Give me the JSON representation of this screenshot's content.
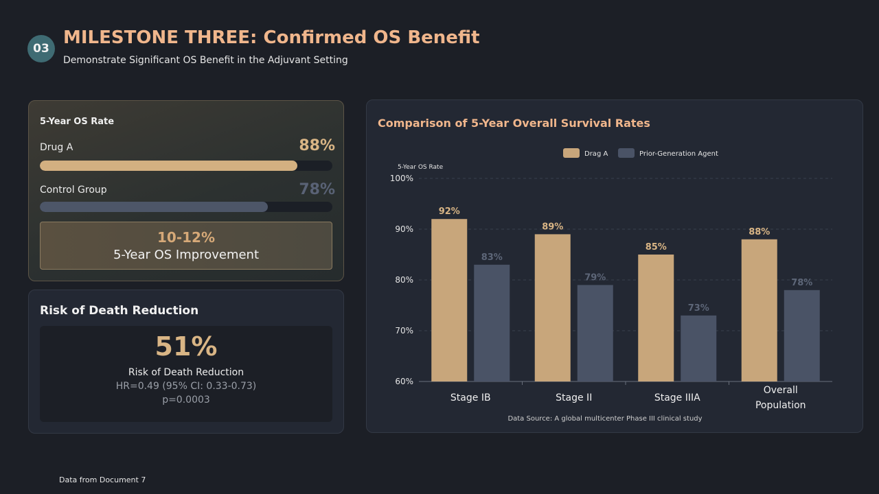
{
  "header": {
    "badge": "03",
    "title": "MILESTONE THREE: Confirmed OS Benefit",
    "subtitle": "Demonstrate Significant OS Benefit in the Adjuvant Setting"
  },
  "os_card": {
    "title": "5-Year OS Rate",
    "bars": [
      {
        "label": "Drug A",
        "value_text": "88%",
        "fraction": 0.88,
        "color": "#d3b081",
        "value_color": "#d9b585"
      },
      {
        "label": "Control Group",
        "value_text": "78%",
        "fraction": 0.78,
        "color": "#4d5668",
        "value_color": "#596275"
      }
    ],
    "improvement_value": "10-12%",
    "improvement_label": "5-Year OS Improvement"
  },
  "risk_card": {
    "title": "Risk of Death Reduction",
    "value": "51%",
    "label": "Risk of Death Reduction",
    "hr": "HR=0.49 (95% CI: 0.33-0.73)",
    "p": "p=0.0003"
  },
  "chart_card": {
    "title": "Comparison of 5-Year Overall Survival Rates"
  },
  "chart_data": {
    "type": "bar",
    "title": "Comparison of 5-Year Overall Survival Rates",
    "ylabel": "5-Year OS Rate",
    "xlabel": "",
    "categories": [
      "Stage IB",
      "Stage II",
      "Stage IIIA",
      "Overall Population"
    ],
    "series": [
      {
        "name": "Drag A",
        "values": [
          92,
          89,
          85,
          88
        ],
        "labels": [
          "92%",
          "89%",
          "85%",
          "88%"
        ],
        "color": "#c8a67b",
        "label_color": "#d9b585"
      },
      {
        "name": "Prior-Generation Agent",
        "values": [
          83,
          79,
          73,
          78
        ],
        "labels": [
          "83%",
          "79%",
          "73%",
          "78%"
        ],
        "color": "#4a5366",
        "label_color": "#5d6678"
      }
    ],
    "ylim": [
      60,
      100
    ],
    "yticks": [
      60,
      70,
      80,
      90,
      100
    ],
    "ytick_labels": [
      "60%",
      "70%",
      "80%",
      "90%",
      "100%"
    ],
    "grid": true,
    "legend": "top-center",
    "source": "Data Source: A global multicenter Phase III clinical study"
  },
  "footer": "Data from Document 7"
}
